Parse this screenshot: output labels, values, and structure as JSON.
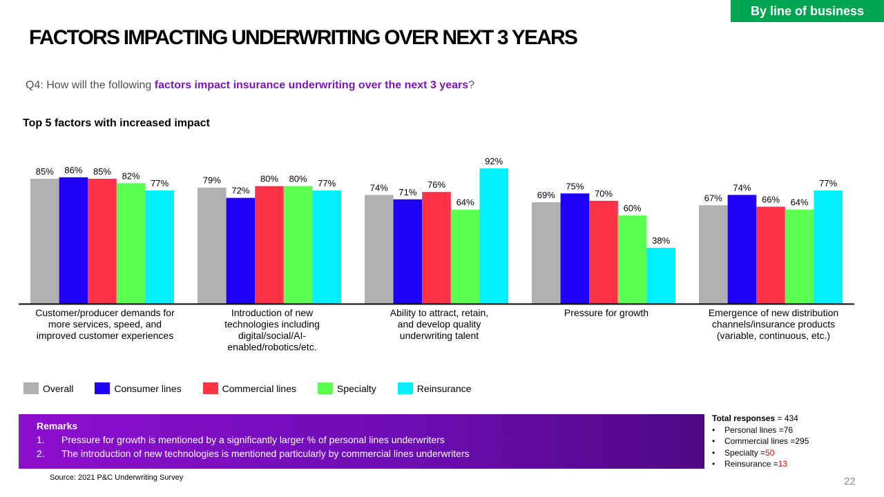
{
  "tag": "By line of business",
  "title": "FACTORS IMPACTING UNDERWRITING OVER NEXT 3 YEARS",
  "question": {
    "prefix": "Q4: How will the following ",
    "highlight": "factors impact insurance underwriting over the next 3 years",
    "suffix": "?"
  },
  "subhead": "Top 5 factors with increased impact",
  "chart_data": {
    "type": "bar",
    "title": "Top 5 factors with increased impact",
    "xlabel": "",
    "ylabel": "",
    "ylim": [
      0,
      100
    ],
    "grid": false,
    "legend_position": "bottom-left",
    "categories": [
      [
        "Customer/producer demands for",
        "more services, speed, and",
        "improved customer experiences"
      ],
      [
        "Introduction of new",
        "technologies including",
        "digital/social/AI-",
        "enabled/robotics/etc."
      ],
      [
        "Ability to attract, retain,",
        "and develop quality",
        "underwriting talent"
      ],
      [
        "Pressure for growth"
      ],
      [
        "Emergence of new distribution",
        "channels/insurance products",
        "(variable, continuous, etc.)"
      ]
    ],
    "series": [
      {
        "name": "Overall",
        "color": "#b1b1b1",
        "values": [
          85,
          79,
          74,
          69,
          67
        ]
      },
      {
        "name": "Consumer lines",
        "color": "#1e00f5",
        "values": [
          86,
          72,
          71,
          75,
          74
        ]
      },
      {
        "name": "Commercial lines",
        "color": "#ff3248",
        "values": [
          85,
          80,
          76,
          70,
          66
        ]
      },
      {
        "name": "Specialty",
        "color": "#5aff50",
        "values": [
          82,
          80,
          64,
          60,
          64
        ]
      },
      {
        "name": "Reinsurance",
        "color": "#00f0ff",
        "values": [
          77,
          77,
          92,
          38,
          77
        ]
      }
    ],
    "value_suffix": "%"
  },
  "remarks": {
    "title": "Remarks",
    "items": [
      {
        "num": "1.",
        "text": "Pressure for growth is mentioned by a significantly larger % of personal lines underwriters"
      },
      {
        "num": "2.",
        "text": "The introduction of new technologies is mentioned particularly by commercial lines underwriters"
      }
    ]
  },
  "responses": {
    "label": "Total responses",
    "total": " = 434",
    "items": [
      {
        "bullet": "•",
        "label": "Personal lines = ",
        "value": "76",
        "highlight": false
      },
      {
        "bullet": "•",
        "label": "Commercial lines = ",
        "value": "295",
        "highlight": false
      },
      {
        "bullet": "•",
        "label": "Specialty = ",
        "value": "50",
        "highlight": true
      },
      {
        "bullet": "•",
        "label": "Reinsurance = ",
        "value": "13",
        "highlight": true
      }
    ]
  },
  "source": "Source: 2021 P&C Underwriting Survey",
  "page_number": "22"
}
